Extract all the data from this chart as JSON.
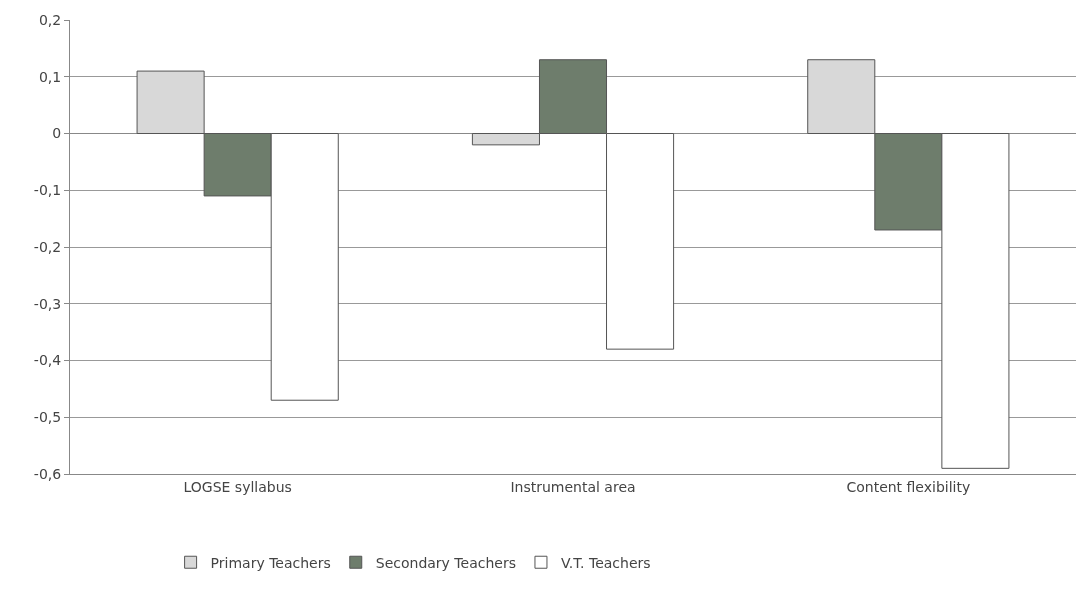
{
  "chart_data": {
    "type": "bar",
    "categories": [
      "LOGSE syllabus",
      "Instrumental area",
      "Content flexibility"
    ],
    "series": [
      {
        "name": "Primary Teachers",
        "color": "#d8d8d8",
        "values": [
          0.11,
          -0.02,
          0.13
        ]
      },
      {
        "name": "Secondary Teachers",
        "color": "#6e7d6c",
        "values": [
          -0.11,
          0.13,
          -0.17
        ]
      },
      {
        "name": "V.T. Teachers",
        "color": "#ffffff",
        "values": [
          -0.47,
          -0.38,
          -0.59
        ]
      }
    ],
    "ylim": [
      -0.6,
      0.2
    ],
    "yticks": [
      {
        "value": 0.2,
        "label": "0,2"
      },
      {
        "value": 0.1,
        "label": "0,1"
      },
      {
        "value": 0,
        "label": "0"
      },
      {
        "value": -0.1,
        "label": "-0,1"
      },
      {
        "value": -0.2,
        "label": "-0,2"
      },
      {
        "value": -0.3,
        "label": "-0,3"
      },
      {
        "value": -0.4,
        "label": "-0,4"
      },
      {
        "value": -0.5,
        "label": "-0,5"
      },
      {
        "value": -0.6,
        "label": "-0,6"
      }
    ],
    "grid": "y",
    "legend": "bottom"
  }
}
